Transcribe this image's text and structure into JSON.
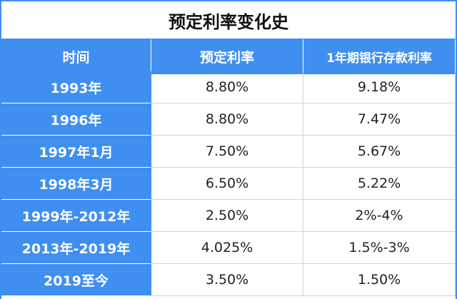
{
  "title": "预定利率变化史",
  "table": {
    "header": [
      "时间",
      "预定利率",
      "1年期银行存款利率"
    ],
    "rows": [
      [
        "1993年",
        "8.80%",
        "9.18%"
      ],
      [
        "1996年",
        "8.80%",
        "7.47%"
      ],
      [
        "1997年1月",
        "7.50%",
        "5.67%"
      ],
      [
        "1998年3月",
        "6.50%",
        "5.22%"
      ],
      [
        "1999年-2012年",
        "2.50%",
        "2%-4%"
      ],
      [
        "2013年-2019年",
        "4.025%",
        "1.5%-3%"
      ],
      [
        "2019至今",
        "3.50%",
        "1.50%"
      ]
    ]
  }
}
